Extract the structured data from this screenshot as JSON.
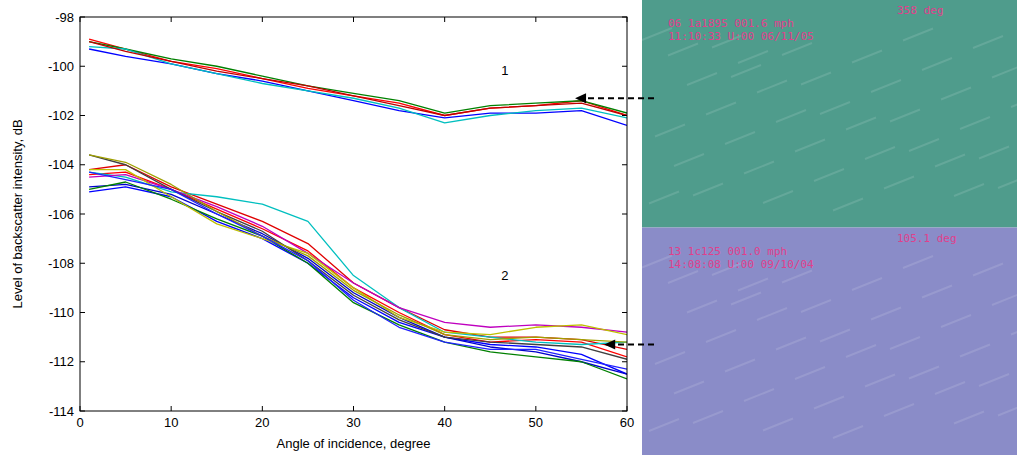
{
  "chart_data": {
    "type": "line",
    "x_label": "Angle of incidence, degree",
    "y_label": "Level of backscatter intensity, dB",
    "x": [
      1,
      5,
      10,
      15,
      20,
      25,
      30,
      35,
      40,
      45,
      50,
      55,
      60
    ],
    "xlim": [
      0,
      60
    ],
    "xticks": [
      0,
      10,
      20,
      30,
      40,
      50,
      60
    ],
    "ylim": [
      -114,
      -98
    ],
    "yticks": [
      -114,
      -112,
      -110,
      -108,
      -106,
      -104,
      -102,
      -100,
      -98
    ],
    "grid": false,
    "annotations": [
      {
        "text": "1",
        "x": 46.6,
        "y": -100.2
      },
      {
        "text": "2",
        "x": 46.6,
        "y": -108.5
      }
    ],
    "series": [
      {
        "color": "#ff0000",
        "values": [
          -98.9,
          -99.3,
          -99.8,
          -100.1,
          -100.5,
          -100.9,
          -101.2,
          -101.5,
          -102.0,
          -101.7,
          -101.6,
          -101.4,
          -102.0
        ]
      },
      {
        "color": "#008000",
        "values": [
          -99.0,
          -99.3,
          -99.7,
          -100.0,
          -100.4,
          -100.8,
          -101.1,
          -101.4,
          -101.9,
          -101.6,
          -101.5,
          -101.4,
          -101.9
        ]
      },
      {
        "color": "#0000ff",
        "values": [
          -99.3,
          -99.6,
          -99.9,
          -100.3,
          -100.6,
          -101.0,
          -101.4,
          -101.8,
          -102.1,
          -101.9,
          -101.9,
          -101.8,
          -102.4
        ]
      },
      {
        "color": "#00bfbf",
        "values": [
          -99.2,
          -99.3,
          -99.9,
          -100.3,
          -100.7,
          -101.0,
          -101.3,
          -101.7,
          -102.3,
          -102.0,
          -101.8,
          -101.7,
          -102.1
        ]
      },
      {
        "color": "#bf0000",
        "values": [
          -99.0,
          -99.4,
          -99.8,
          -100.2,
          -100.5,
          -100.8,
          -101.2,
          -101.6,
          -102.0,
          -101.7,
          -101.6,
          -101.5,
          -102.0
        ]
      },
      {
        "color": "#0000ff",
        "values": [
          -105.1,
          -104.9,
          -105.3,
          -106.3,
          -107.0,
          -108.0,
          -109.4,
          -110.4,
          -111.0,
          -111.3,
          -111.4,
          -111.7,
          -112.5
        ]
      },
      {
        "color": "#0000cc",
        "values": [
          -104.9,
          -104.8,
          -105.2,
          -106.0,
          -106.8,
          -107.8,
          -109.2,
          -110.2,
          -111.0,
          -111.4,
          -111.6,
          -112.0,
          -112.5
        ]
      },
      {
        "color": "#008000",
        "values": [
          -105.0,
          -104.7,
          -105.4,
          -106.2,
          -106.9,
          -108.0,
          -109.6,
          -110.5,
          -111.2,
          -111.6,
          -111.8,
          -112.0,
          -112.7
        ]
      },
      {
        "color": "#ff0000",
        "values": [
          -104.4,
          -104.3,
          -105.0,
          -105.8,
          -106.6,
          -107.5,
          -109.0,
          -110.0,
          -110.9,
          -111.2,
          -111.1,
          -111.2,
          -111.8
        ]
      },
      {
        "color": "#e00000",
        "values": [
          -104.2,
          -104.0,
          -104.9,
          -105.6,
          -106.3,
          -107.2,
          -108.8,
          -109.8,
          -110.7,
          -111.0,
          -111.0,
          -111.1,
          -111.5
        ]
      },
      {
        "color": "#00bfbf",
        "values": [
          -104.3,
          -104.5,
          -105.1,
          -105.3,
          -105.6,
          -106.3,
          -108.5,
          -109.8,
          -110.8,
          -111.0,
          -111.2,
          -111.3,
          -111.2
        ]
      },
      {
        "color": "#bf00bf",
        "values": [
          -104.5,
          -104.4,
          -105.0,
          -105.7,
          -106.5,
          -107.6,
          -108.8,
          -109.8,
          -110.4,
          -110.6,
          -110.5,
          -110.6,
          -110.8
        ]
      },
      {
        "color": "#bfbf00",
        "values": [
          -104.2,
          -104.2,
          -105.3,
          -106.4,
          -107.0,
          -107.6,
          -109.0,
          -110.2,
          -110.8,
          -110.9,
          -110.6,
          -110.5,
          -110.9
        ]
      },
      {
        "color": "#404040",
        "values": [
          -103.6,
          -104.0,
          -105.0,
          -105.9,
          -106.7,
          -107.9,
          -109.3,
          -110.3,
          -111.0,
          -111.2,
          -111.3,
          -111.4,
          -111.9
        ]
      },
      {
        "color": "#a0a000",
        "values": [
          -103.6,
          -103.9,
          -104.8,
          -105.9,
          -106.9,
          -107.7,
          -109.1,
          -110.1,
          -110.9,
          -111.1,
          -111.0,
          -111.1,
          -111.2
        ]
      },
      {
        "color": "#2020ff",
        "values": [
          -104.3,
          -104.6,
          -105.0,
          -106.0,
          -106.9,
          -107.9,
          -109.5,
          -110.6,
          -111.2,
          -111.5,
          -111.5,
          -111.9,
          -112.3
        ]
      }
    ]
  },
  "photos": [
    {
      "color": "#4f9c8c",
      "points_to": [
        54.3,
        -101.3
      ],
      "lines": [
        "358 deg",
        "06 1a1895   001.6 mph",
        "11:10:33 U:00 06/11/05"
      ]
    },
    {
      "color": "#8a8cc8",
      "points_to": [
        57.5,
        -111.3
      ],
      "lines": [
        "105.1 deg",
        "13 1c125   001.0 mph",
        "14:08:08 U:00 09/10/04"
      ]
    }
  ]
}
